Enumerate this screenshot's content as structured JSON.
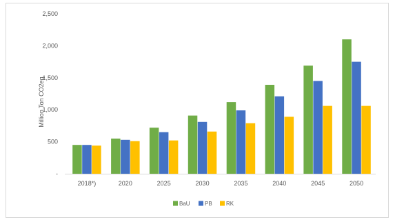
{
  "chart_data": {
    "type": "bar",
    "title": "",
    "xlabel": "",
    "ylabel": "Million Ton CO2eq",
    "ylim": [
      0,
      2500
    ],
    "yticks": [
      {
        "value": 0,
        "label": "-"
      },
      {
        "value": 500,
        "label": "500"
      },
      {
        "value": 1000,
        "label": "1,000"
      },
      {
        "value": 1500,
        "label": "1,500"
      },
      {
        "value": 2000,
        "label": "2,000"
      },
      {
        "value": 2500,
        "label": "2,500"
      }
    ],
    "grid": false,
    "legend_position": "bottom",
    "categories": [
      "2018*)",
      "2020",
      "2025",
      "2030",
      "2035",
      "2040",
      "2045",
      "2050"
    ],
    "series": [
      {
        "name": "BaU",
        "color": "#70ad47",
        "values": [
          450,
          550,
          720,
          910,
          1120,
          1390,
          1690,
          2100
        ]
      },
      {
        "name": "PB",
        "color": "#4472c4",
        "values": [
          450,
          530,
          650,
          810,
          990,
          1210,
          1450,
          1750
        ]
      },
      {
        "name": "RK",
        "color": "#ffc000",
        "values": [
          440,
          510,
          520,
          660,
          790,
          890,
          1060,
          1060
        ]
      }
    ]
  }
}
